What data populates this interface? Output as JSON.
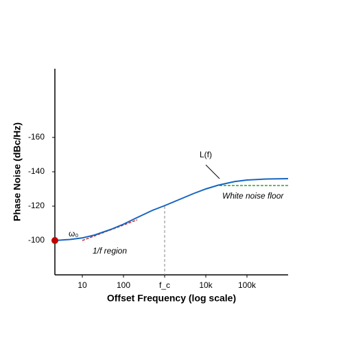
{
  "chart_data": {
    "type": "line",
    "xlabel": "Offset Frequency (log scale)",
    "ylabel": "Phase Noise (dBc/Hz)",
    "xscale": "log",
    "xlim": [
      2.154,
      1000000
    ],
    "ylim": [
      -80,
      -200
    ],
    "xticks": [
      10,
      100,
      {
        "value": 1000,
        "label": "f_c"
      },
      {
        "value": 10000,
        "label": "10k"
      },
      {
        "value": 100000,
        "label": "100k"
      }
    ],
    "yticks": [
      -160,
      -140,
      -120,
      -100
    ],
    "curve": {
      "color": "#1565c0",
      "x": [
        2.154,
        5,
        10,
        20,
        50,
        100,
        200,
        500,
        1000,
        2000,
        5000,
        10000,
        20000,
        50000,
        100000,
        300000,
        1000000
      ],
      "values": [
        -100,
        -100.6,
        -101.5,
        -103.2,
        -106.5,
        -109.5,
        -113,
        -117.5,
        -120.3,
        -123.3,
        -127.3,
        -130,
        -132.2,
        -134.3,
        -135.2,
        -135.8,
        -136
      ]
    },
    "slope_line": {
      "color": "#c62828",
      "x": [
        10,
        215
      ],
      "values": [
        -100,
        -112
      ]
    },
    "floor_line": {
      "color": "#2e9e2e",
      "x": [
        21500,
        1000000
      ],
      "values": [
        -132,
        -132
      ]
    },
    "corner_line": {
      "color": "#999999",
      "x": [
        1000,
        1000
      ],
      "values": [
        -120,
        -80
      ]
    },
    "marker": {
      "color": "#c00000",
      "x": 2.154,
      "value": -100
    },
    "annotations": [
      "ω₀",
      "L(f)",
      "White noise floor",
      "1/f region"
    ]
  }
}
